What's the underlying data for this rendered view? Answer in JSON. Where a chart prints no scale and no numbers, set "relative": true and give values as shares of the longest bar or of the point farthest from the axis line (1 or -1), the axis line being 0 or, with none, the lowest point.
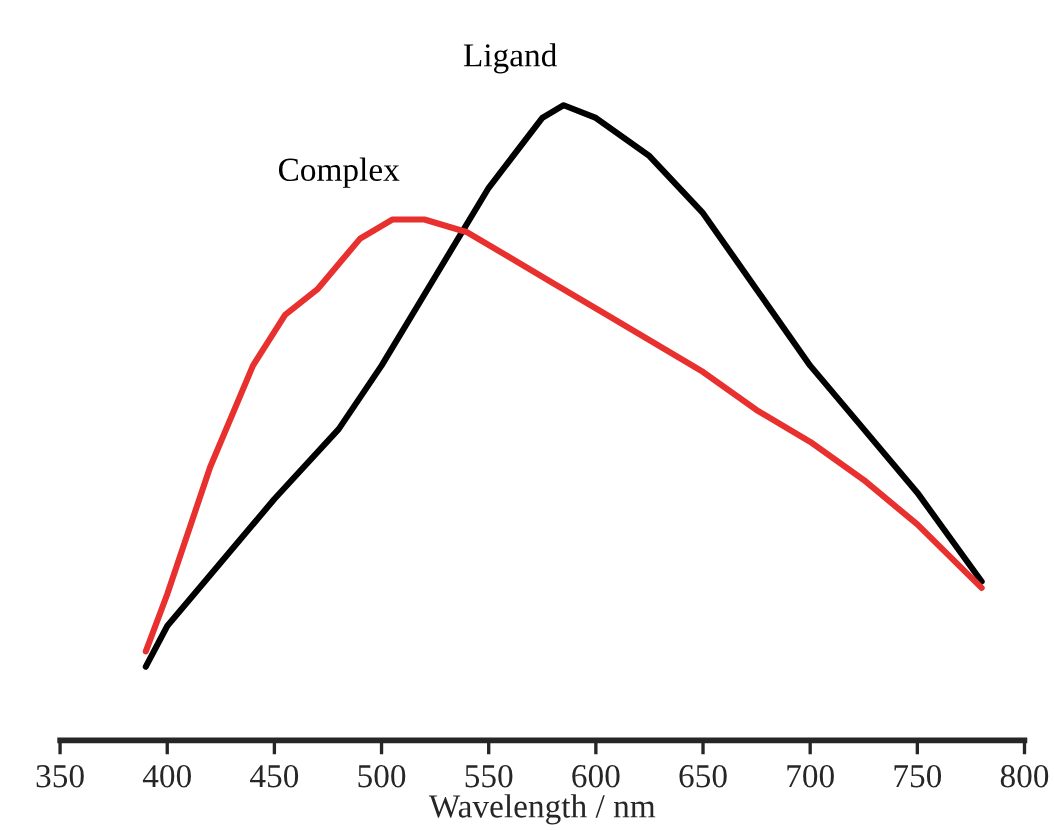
{
  "chart_data": {
    "type": "line",
    "xlabel": "Wavelength / nm",
    "relative": true,
    "xlim": [
      350,
      800
    ],
    "xticks": [
      350,
      400,
      450,
      500,
      550,
      600,
      650,
      700,
      750,
      800
    ],
    "grid": false,
    "legend": false,
    "marker": "none",
    "line_style": "solid",
    "series": [
      {
        "name": "Ligand",
        "color": "#000000",
        "x": [
          390,
          400,
          425,
          450,
          480,
          500,
          525,
          550,
          575,
          585,
          600,
          625,
          650,
          675,
          700,
          725,
          750,
          780
        ],
        "values": [
          0.116,
          0.18,
          0.28,
          0.38,
          0.49,
          0.59,
          0.73,
          0.87,
          0.98,
          1.0,
          0.98,
          0.92,
          0.83,
          0.71,
          0.59,
          0.49,
          0.39,
          0.25
        ]
      },
      {
        "name": "Complex",
        "color": "#e8312f",
        "x": [
          390,
          400,
          420,
          440,
          455,
          470,
          490,
          505,
          520,
          540,
          560,
          580,
          600,
          625,
          650,
          675,
          700,
          725,
          750,
          780
        ],
        "values": [
          0.14,
          0.23,
          0.43,
          0.59,
          0.67,
          0.71,
          0.79,
          0.82,
          0.82,
          0.8,
          0.76,
          0.72,
          0.68,
          0.63,
          0.58,
          0.52,
          0.47,
          0.41,
          0.34,
          0.24
        ]
      }
    ]
  }
}
